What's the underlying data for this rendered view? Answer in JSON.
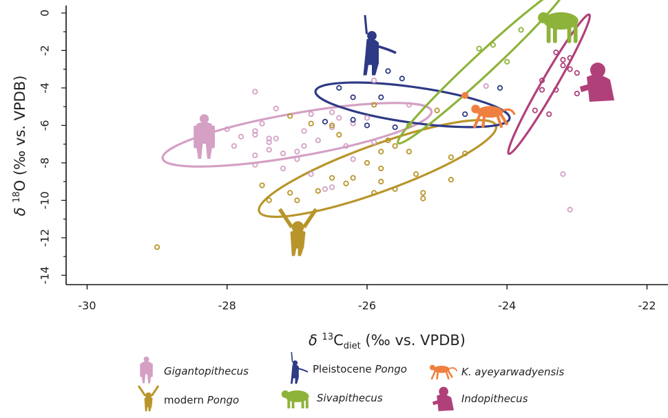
{
  "chart_data": {
    "type": "scatter",
    "xlabel": {
      "main": "δ",
      "sup": "13",
      "base": "C",
      "sub": "diet",
      "rest": " (‰ vs. VPDB)"
    },
    "ylabel": {
      "main": "δ",
      "sup": "18",
      "base": "O",
      "rest": " (‰ vs. VPDB)"
    },
    "xlim": [
      -30.3,
      -21.7
    ],
    "ylim": [
      -14.5,
      0.4
    ],
    "x_ticks": [
      -30,
      -28,
      -26,
      -24,
      -22
    ],
    "y_ticks": [
      0,
      -2,
      -4,
      -6,
      -8,
      -10,
      -12,
      -14
    ],
    "grid": false,
    "legend_position": "bottom",
    "series": [
      {
        "name": "Gigantopithecus",
        "color": "#d4a0c4",
        "points": [
          [
            -27.6,
            -4.2
          ],
          [
            -28,
            -6.2
          ],
          [
            -27.9,
            -7.1
          ],
          [
            -27.8,
            -6.6
          ],
          [
            -27.6,
            -6.3
          ],
          [
            -27.6,
            -6.5
          ],
          [
            -27.6,
            -7.6
          ],
          [
            -27.6,
            -8.1
          ],
          [
            -27.5,
            -5.9
          ],
          [
            -27.4,
            -6.7
          ],
          [
            -27.4,
            -6.9
          ],
          [
            -27.4,
            -7.3
          ],
          [
            -27.3,
            -5.1
          ],
          [
            -27.3,
            -6.7
          ],
          [
            -27.2,
            -7.5
          ],
          [
            -27.2,
            -8.3
          ],
          [
            -27,
            -7.4
          ],
          [
            -27,
            -7.8
          ],
          [
            -26.9,
            -6.3
          ],
          [
            -26.9,
            -7.1
          ],
          [
            -26.8,
            -5.4
          ],
          [
            -26.8,
            -8.6
          ],
          [
            -26.7,
            -6.8
          ],
          [
            -26.5,
            -5.3
          ],
          [
            -26.5,
            -6.1
          ],
          [
            -26.4,
            -5.6
          ],
          [
            -26.3,
            -7.1
          ],
          [
            -26.2,
            -5.9
          ],
          [
            -26.2,
            -7.8
          ],
          [
            -26,
            -5.6
          ],
          [
            -25.9,
            -3.6
          ],
          [
            -25.9,
            -6.9
          ],
          [
            -25.4,
            -4.9
          ],
          [
            -24.3,
            -3.9
          ],
          [
            -23.2,
            -8.6
          ],
          [
            -23.1,
            -10.5
          ],
          [
            -26.6,
            -9.4
          ],
          [
            -26.5,
            -9.3
          ]
        ],
        "label": "Gigantopithecus",
        "label_prefix": ""
      },
      {
        "name": "modern Pongo",
        "color": "#b8952a",
        "points": [
          [
            -29,
            -12.5
          ],
          [
            -27.5,
            -9.2
          ],
          [
            -27.4,
            -10
          ],
          [
            -27.1,
            -5.5
          ],
          [
            -27.1,
            -9.6
          ],
          [
            -27,
            -10
          ],
          [
            -26.8,
            -5.9
          ],
          [
            -26.7,
            -9.5
          ],
          [
            -26.5,
            -6
          ],
          [
            -26.5,
            -8.8
          ],
          [
            -26.4,
            -6.5
          ],
          [
            -26.3,
            -9.1
          ],
          [
            -26.2,
            -8.8
          ],
          [
            -26,
            -8
          ],
          [
            -25.9,
            -4.9
          ],
          [
            -25.9,
            -9.6
          ],
          [
            -25.8,
            -7.4
          ],
          [
            -25.8,
            -9
          ],
          [
            -25.8,
            -8.3
          ],
          [
            -25.7,
            -6.8
          ],
          [
            -25.6,
            -7.1
          ],
          [
            -25.6,
            -9.4
          ],
          [
            -25.4,
            -7.4
          ],
          [
            -25.3,
            -8.6
          ],
          [
            -25.2,
            -9.6
          ],
          [
            -25.2,
            -9.9
          ],
          [
            -25,
            -5.2
          ],
          [
            -24.8,
            -7.7
          ],
          [
            -24.8,
            -8.9
          ],
          [
            -24.6,
            -7.5
          ]
        ],
        "label": "Pongo",
        "label_prefix": "modern "
      },
      {
        "name": "Pleistocene Pongo",
        "color": "#2e3a85",
        "points": [
          [
            -26.6,
            -5.8
          ],
          [
            -26.4,
            -4
          ],
          [
            -26.2,
            -5.7
          ],
          [
            -26.2,
            -4.5
          ],
          [
            -26,
            -6
          ],
          [
            -25.8,
            -4.5
          ],
          [
            -25.7,
            -3.1
          ],
          [
            -25.6,
            -6.1
          ],
          [
            -25.5,
            -3.5
          ],
          [
            -24.6,
            -5.4
          ],
          [
            -24.1,
            -4
          ]
        ],
        "label": "Pongo",
        "label_prefix": "Pleistocene "
      },
      {
        "name": "Sivapithecus",
        "color": "#8db33a",
        "points": [
          [
            -25.4,
            -6
          ],
          [
            -24.4,
            -1.9
          ],
          [
            -24.2,
            -1.7
          ],
          [
            -24,
            -2.6
          ],
          [
            -23.8,
            -0.9
          ]
        ],
        "label": "Sivapithecus",
        "label_prefix": ""
      },
      {
        "name": "K. ayeyarwadyensis",
        "color": "#f08040",
        "points": [
          [
            -24.6,
            -4.4
          ]
        ],
        "label": "K. ayeyarwadyensis",
        "label_prefix": ""
      },
      {
        "name": "Indopithecus",
        "color": "#b0407a",
        "points": [
          [
            -23.6,
            -5.2
          ],
          [
            -23.5,
            -3.6
          ],
          [
            -23.5,
            -4.1
          ],
          [
            -23.4,
            -5.4
          ],
          [
            -23.3,
            -4.1
          ],
          [
            -23.3,
            -2.1
          ],
          [
            -23.2,
            -2.5
          ],
          [
            -23.2,
            -2.8
          ],
          [
            -23.1,
            -3
          ],
          [
            -23,
            -4.3
          ],
          [
            -23,
            -3.2
          ],
          [
            -23.1,
            -2.4
          ]
        ],
        "label": "Indopithecus",
        "label_prefix": ""
      }
    ],
    "ellipses": [
      {
        "series": "Gigantopithecus",
        "cx": -27,
        "cy": -6.5,
        "rx": 1.95,
        "ry": 1.15,
        "angle": -10
      },
      {
        "series": "modern Pongo",
        "cx": -25.85,
        "cy": -8.3,
        "rx": 1.8,
        "ry": 1.25,
        "angle": -20
      },
      {
        "series": "Pleistocene Pongo",
        "cx": -25.35,
        "cy": -4.9,
        "rx": 1.4,
        "ry": 0.95,
        "angle": 8
      },
      {
        "series": "Sivapithecus",
        "cx": -24.35,
        "cy": -2.75,
        "rx": 1.65,
        "ry": 0.55,
        "angle": -43
      },
      {
        "series": "Indopithecus",
        "cx": -23.4,
        "cy": -3.8,
        "rx": 1.15,
        "ry": 0.4,
        "angle": -60
      }
    ]
  }
}
